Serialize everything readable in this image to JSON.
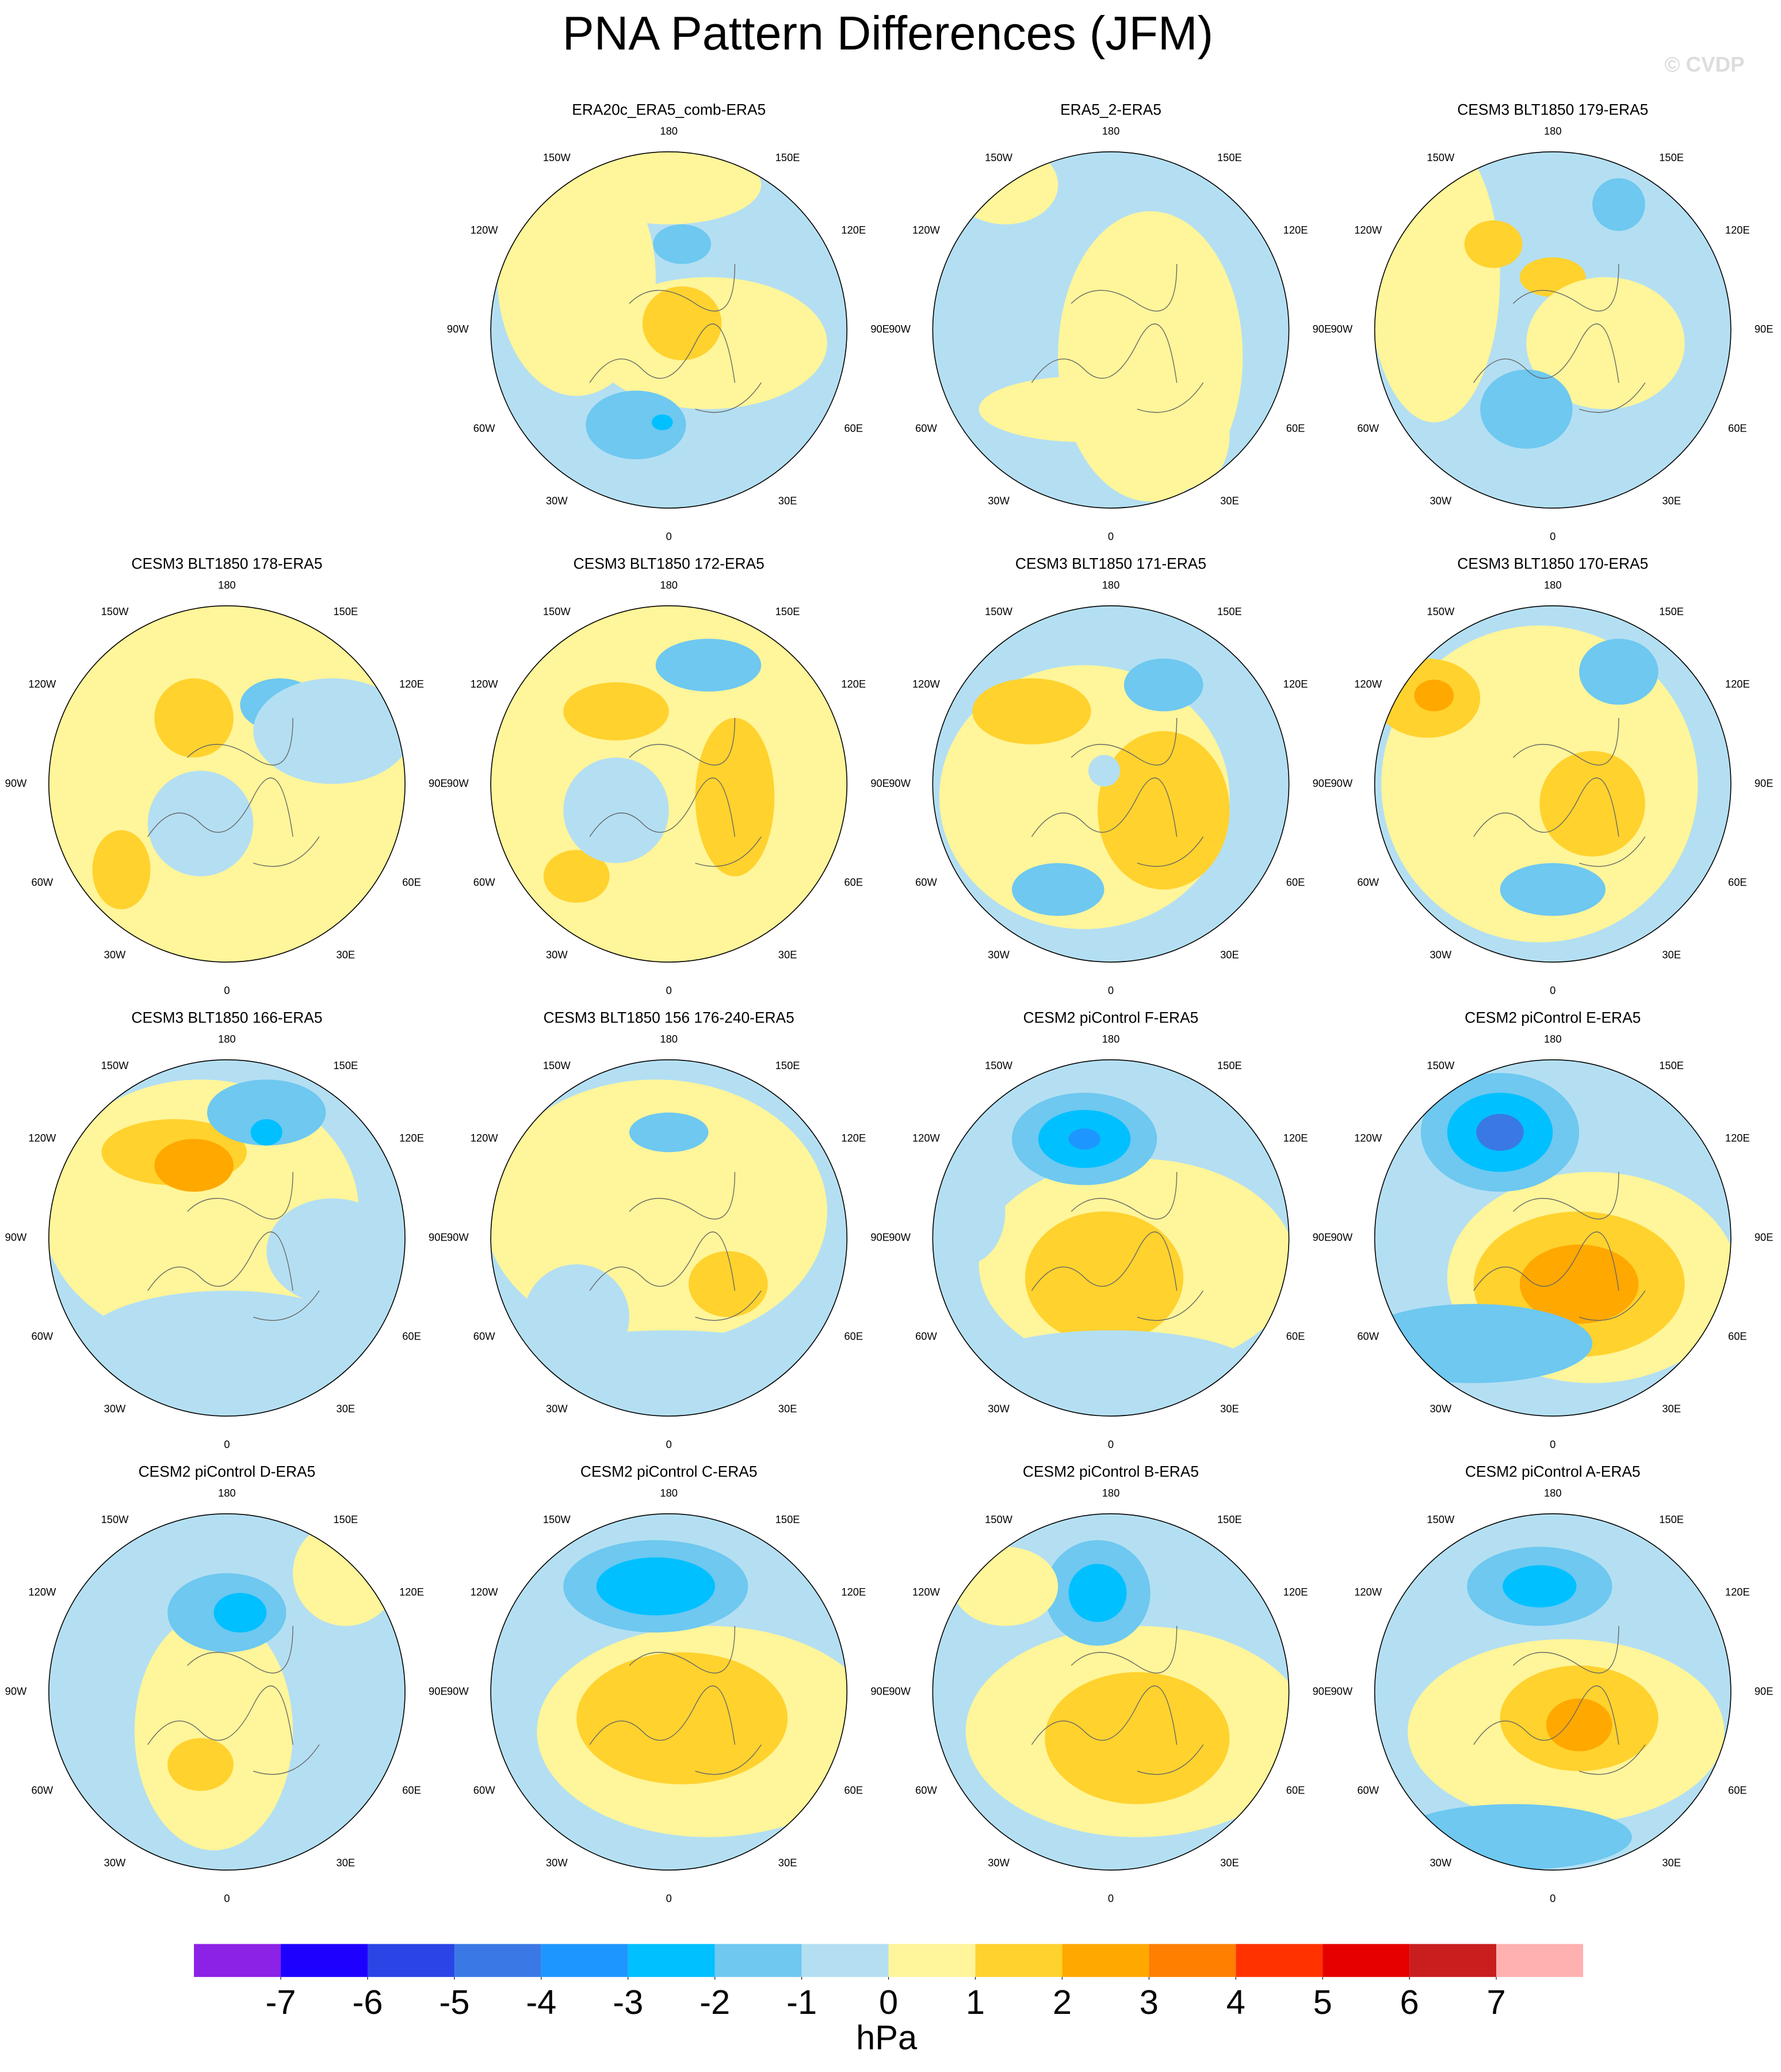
{
  "title": "PNA Pattern Differences (JFM)",
  "watermark": "© CVDP",
  "panels": [
    {
      "title": "ERA20c_ERA5_comb-ERA5"
    },
    {
      "title": "ERA5_2-ERA5"
    },
    {
      "title": "CESM3 BLT1850 179-ERA5"
    },
    {
      "title": "CESM3 BLT1850 178-ERA5"
    },
    {
      "title": "CESM3 BLT1850 172-ERA5"
    },
    {
      "title": "CESM3 BLT1850 171-ERA5"
    },
    {
      "title": "CESM3 BLT1850 170-ERA5"
    },
    {
      "title": "CESM3 BLT1850 166-ERA5"
    },
    {
      "title": "CESM3 BLT1850 156 176-240-ERA5"
    },
    {
      "title": "CESM2 piControl F-ERA5"
    },
    {
      "title": "CESM2 piControl E-ERA5"
    },
    {
      "title": "CESM2 piControl D-ERA5"
    },
    {
      "title": "CESM2 piControl C-ERA5"
    },
    {
      "title": "CESM2 piControl B-ERA5"
    },
    {
      "title": "CESM2 piControl A-ERA5"
    }
  ],
  "lon_labels": [
    "180",
    "150E",
    "120E",
    "90E",
    "60E",
    "30E",
    "0",
    "30W",
    "60W",
    "90W",
    "120W",
    "150W"
  ],
  "colorbar": {
    "colors": [
      "#8b22e6",
      "#1e00ff",
      "#2a44e6",
      "#3a78e6",
      "#1e96ff",
      "#00c0ff",
      "#6ec8f0",
      "#b4dff2",
      "#fff59a",
      "#ffd22e",
      "#ffa800",
      "#ff7f00",
      "#ff3200",
      "#e60000",
      "#c81e1e",
      "#ffb0b0"
    ],
    "ticks": [
      -7,
      -6,
      -5,
      -4,
      -3,
      -2,
      -1,
      0,
      1,
      2,
      3,
      4,
      5,
      6,
      7
    ],
    "label": "hPa"
  }
}
